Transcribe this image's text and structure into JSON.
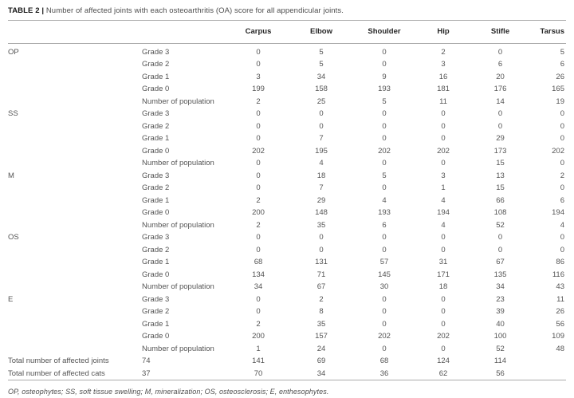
{
  "title": {
    "label": "TABLE 2 |",
    "text": "Number of affected joints with each osteoarthritis (OA) score for all appendicular joints."
  },
  "table": {
    "columns": [
      "Carpus",
      "Elbow",
      "Shoulder",
      "Hip",
      "Stifle",
      "Tarsus"
    ],
    "sections": [
      {
        "group": "OP",
        "rows": [
          {
            "sub": "Grade 3",
            "values": [
              "0",
              "5",
              "0",
              "2",
              "0",
              "5"
            ]
          },
          {
            "sub": "Grade 2",
            "values": [
              "0",
              "5",
              "0",
              "3",
              "6",
              "6"
            ]
          },
          {
            "sub": "Grade 1",
            "values": [
              "3",
              "34",
              "9",
              "16",
              "20",
              "26"
            ]
          },
          {
            "sub": "Grade 0",
            "values": [
              "199",
              "158",
              "193",
              "181",
              "176",
              "165"
            ]
          },
          {
            "sub": "Number of population",
            "values": [
              "2",
              "25",
              "5",
              "11",
              "14",
              "19"
            ]
          }
        ]
      },
      {
        "group": "SS",
        "rows": [
          {
            "sub": "Grade 3",
            "values": [
              "0",
              "0",
              "0",
              "0",
              "0",
              "0"
            ]
          },
          {
            "sub": "Grade 2",
            "values": [
              "0",
              "0",
              "0",
              "0",
              "0",
              "0"
            ]
          },
          {
            "sub": "Grade 1",
            "values": [
              "0",
              "7",
              "0",
              "0",
              "29",
              "0"
            ]
          },
          {
            "sub": "Grade 0",
            "values": [
              "202",
              "195",
              "202",
              "202",
              "173",
              "202"
            ]
          },
          {
            "sub": "Number of population",
            "values": [
              "0",
              "4",
              "0",
              "0",
              "15",
              "0"
            ]
          }
        ]
      },
      {
        "group": "M",
        "rows": [
          {
            "sub": "Grade 3",
            "values": [
              "0",
              "18",
              "5",
              "3",
              "13",
              "2"
            ]
          },
          {
            "sub": "Grade 2",
            "values": [
              "0",
              "7",
              "0",
              "1",
              "15",
              "0"
            ]
          },
          {
            "sub": "Grade 1",
            "values": [
              "2",
              "29",
              "4",
              "4",
              "66",
              "6"
            ]
          },
          {
            "sub": "Grade 0",
            "values": [
              "200",
              "148",
              "193",
              "194",
              "108",
              "194"
            ]
          },
          {
            "sub": "Number of population",
            "values": [
              "2",
              "35",
              "6",
              "4",
              "52",
              "4"
            ]
          }
        ]
      },
      {
        "group": "OS",
        "rows": [
          {
            "sub": "Grade 3",
            "values": [
              "0",
              "0",
              "0",
              "0",
              "0",
              "0"
            ]
          },
          {
            "sub": "Grade 2",
            "values": [
              "0",
              "0",
              "0",
              "0",
              "0",
              "0"
            ]
          },
          {
            "sub": "Grade 1",
            "values": [
              "68",
              "131",
              "57",
              "31",
              "67",
              "86"
            ]
          },
          {
            "sub": "Grade 0",
            "values": [
              "134",
              "71",
              "145",
              "171",
              "135",
              "116"
            ]
          },
          {
            "sub": "Number of population",
            "values": [
              "34",
              "67",
              "30",
              "18",
              "34",
              "43"
            ]
          }
        ]
      },
      {
        "group": "E",
        "rows": [
          {
            "sub": "Grade 3",
            "values": [
              "0",
              "2",
              "0",
              "0",
              "23",
              "11"
            ]
          },
          {
            "sub": "Grade 2",
            "values": [
              "0",
              "8",
              "0",
              "0",
              "39",
              "26"
            ]
          },
          {
            "sub": "Grade 1",
            "values": [
              "2",
              "35",
              "0",
              "0",
              "40",
              "56"
            ]
          },
          {
            "sub": "Grade 0",
            "values": [
              "200",
              "157",
              "202",
              "202",
              "100",
              "109"
            ]
          },
          {
            "sub": "Number of population",
            "values": [
              "1",
              "24",
              "0",
              "0",
              "52",
              "48"
            ]
          }
        ]
      }
    ],
    "totals": [
      {
        "label": "Total number of affected joints",
        "sub": "74",
        "values": [
          "141",
          "69",
          "68",
          "124",
          "114",
          ""
        ]
      },
      {
        "label": "Total number of affected cats",
        "sub": "37",
        "values": [
          "70",
          "34",
          "36",
          "62",
          "56",
          ""
        ]
      }
    ]
  },
  "footnote": "OP, osteophytes; SS, soft tissue swelling; M, mineralization; OS, osteosclerosis; E, enthesophytes.",
  "colors": {
    "rule": "#ababab",
    "title_bold": "#161616",
    "header_text": "#262626",
    "body_text": "#545454",
    "background": "#ffffff"
  }
}
